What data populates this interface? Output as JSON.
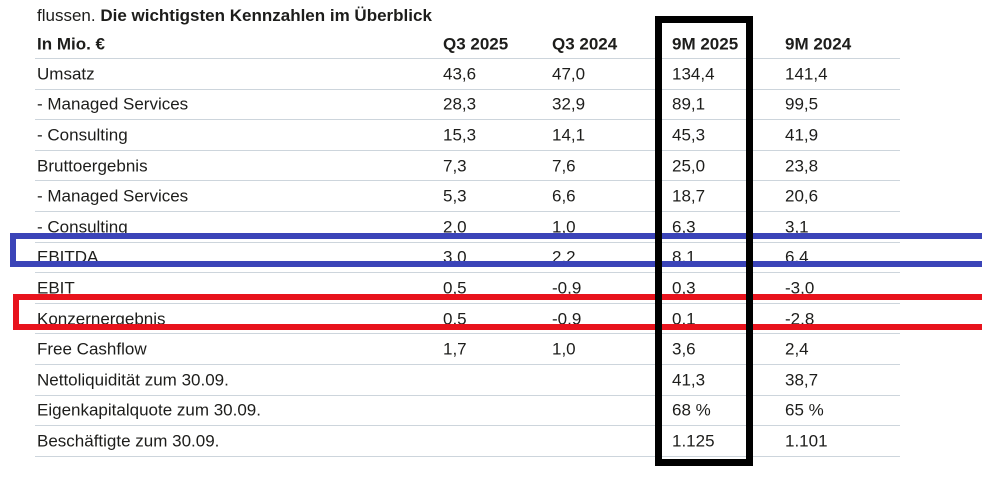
{
  "title": {
    "prefix": "flussen.",
    "bold": "Die wichtigsten Kennzahlen im Überblick"
  },
  "table": {
    "columns": [
      "In Mio. €",
      "Q3 2025",
      "Q3 2024",
      "9M 2025",
      "9M 2024"
    ],
    "rows": [
      {
        "label": "Umsatz",
        "values": [
          "43,6",
          "47,0",
          "134,4",
          "141,4"
        ]
      },
      {
        "label": "- Managed Services",
        "values": [
          "28,3",
          "32,9",
          "89,1",
          "99,5"
        ]
      },
      {
        "label": "- Consulting",
        "values": [
          "15,3",
          "14,1",
          "45,3",
          "41,9"
        ]
      },
      {
        "label": "Bruttoergebnis",
        "values": [
          "7,3",
          "7,6",
          "25,0",
          "23,8"
        ]
      },
      {
        "label": "- Managed Services",
        "values": [
          "5,3",
          "6,6",
          "18,7",
          "20,6"
        ]
      },
      {
        "label": "- Consulting",
        "values": [
          "2,0",
          "1,0",
          "6,3",
          "3,1"
        ]
      },
      {
        "label": "EBITDA",
        "values": [
          "3,0",
          "2,2",
          "8,1",
          "6,4"
        ],
        "highlight": "blue"
      },
      {
        "label": "EBIT",
        "values": [
          "0,5",
          "-0,9",
          "0,3",
          "-3,0"
        ]
      },
      {
        "label": "Konzernergebnis",
        "values": [
          "0,5",
          "-0,9",
          "0,1",
          "-2,8"
        ],
        "highlight": "red"
      },
      {
        "label": "Free Cashflow",
        "values": [
          "1,7",
          "1,0",
          "3,6",
          "2,4"
        ]
      },
      {
        "label": "Nettoliquidität zum 30.09.",
        "values": [
          "",
          "",
          "41,3",
          "38,7"
        ]
      },
      {
        "label": "Eigenkapitalquote zum 30.09.",
        "values": [
          "",
          "",
          "68 %",
          "65 %"
        ]
      },
      {
        "label": "Beschäftigte zum 30.09.",
        "values": [
          "",
          "",
          "1.125",
          "1.101"
        ]
      }
    ]
  },
  "annotations": {
    "column_box": {
      "target": "9M 2025",
      "color": "#000000"
    },
    "row_boxes": [
      {
        "target": "EBITDA",
        "color": "#3b44b8"
      },
      {
        "target": "Konzernergebnis",
        "color": "#e8131d"
      }
    ]
  },
  "colors": {
    "text": "#1d1d1b",
    "row_line": "#cdd5dc",
    "highlight_blue": "#3b44b8",
    "highlight_red": "#e8131d",
    "highlight_black": "#000000",
    "background": "#ffffff"
  }
}
